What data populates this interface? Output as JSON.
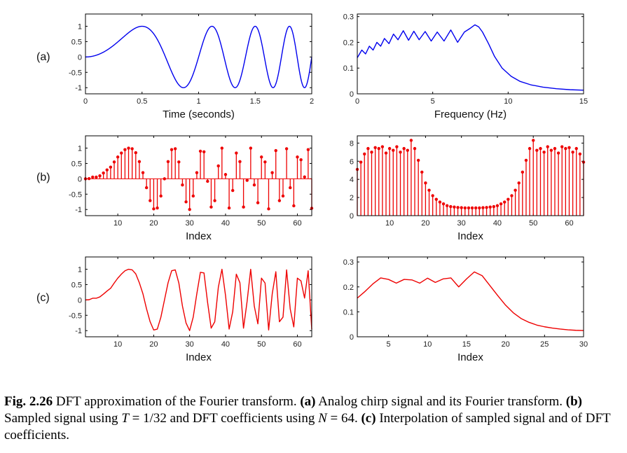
{
  "panel_labels": [
    "(a)",
    "(b)",
    "(c)"
  ],
  "caption": {
    "figure_number": "Fig. 2.26",
    "text_1": " DFT approximation of the Fourier transform. ",
    "a_label": "(a)",
    "text_2": " Analog chirp signal and its Fourier transform. ",
    "b_label": "(b)",
    "text_3": " Sampled signal using ",
    "sym_T": "T",
    "eq_T": " = 1/32",
    "text_4": " and DFT coefficients using ",
    "sym_N": "N",
    "eq_N": " = 64. ",
    "c_label": "(c)",
    "text_5": " Interpolation of sampled signal and of DFT coefficients."
  },
  "colors": {
    "analog": "#0000ee",
    "sampled": "#ee0000",
    "axes": "#000000"
  },
  "chart_data": [
    {
      "id": "a-left",
      "type": "line",
      "xlabel": "Time (seconds)",
      "ylabel": "",
      "xlim": [
        0,
        2
      ],
      "ylim": [
        -1.2,
        1.4
      ],
      "xticks": [
        0,
        0.5,
        1,
        1.5,
        2
      ],
      "xticklabels": [
        "0",
        "0.5",
        "1",
        "1.5",
        "2"
      ],
      "yticks": [
        1,
        0.5,
        0,
        -0.5,
        -1
      ],
      "yticklabels": [
        "1",
        "0.5",
        "0",
        "-0.5",
        "-1"
      ],
      "series": [
        {
          "function": "sin(2*pi*t^2)",
          "color": "#0000ee",
          "x_range": [
            0,
            2
          ]
        }
      ]
    },
    {
      "id": "a-right",
      "type": "line",
      "xlabel": "Frequency (Hz)",
      "ylabel": "",
      "xlim": [
        0,
        15
      ],
      "ylim": [
        0,
        0.31
      ],
      "xticks": [
        0,
        5,
        10,
        15
      ],
      "xticklabels": [
        "0",
        "5",
        "10",
        "15"
      ],
      "yticks": [
        0.3,
        0.2,
        0.1,
        0
      ],
      "yticklabels": [
        "0.3",
        "0.2",
        "0.1",
        "0"
      ],
      "series": [
        {
          "color": "#0000ee",
          "x": [
            0,
            0.3,
            0.55,
            0.8,
            1.05,
            1.3,
            1.55,
            1.8,
            2.1,
            2.4,
            2.7,
            3.05,
            3.4,
            3.75,
            4.1,
            4.5,
            4.9,
            5.3,
            5.75,
            6.2,
            6.65,
            7.1,
            7.5,
            7.8,
            8.05,
            8.3,
            8.7,
            9.1,
            9.6,
            10.2,
            10.8,
            11.5,
            12.3,
            13.2,
            14.1,
            15
          ],
          "y": [
            0.14,
            0.17,
            0.155,
            0.185,
            0.17,
            0.2,
            0.185,
            0.215,
            0.195,
            0.232,
            0.21,
            0.245,
            0.208,
            0.243,
            0.21,
            0.242,
            0.205,
            0.24,
            0.205,
            0.248,
            0.2,
            0.24,
            0.255,
            0.268,
            0.26,
            0.24,
            0.195,
            0.145,
            0.1,
            0.068,
            0.048,
            0.035,
            0.026,
            0.02,
            0.016,
            0.014
          ]
        }
      ]
    },
    {
      "id": "b-left",
      "type": "stem",
      "xlabel": "Index",
      "ylabel": "",
      "xlim": [
        1,
        64
      ],
      "ylim": [
        -1.2,
        1.4
      ],
      "xticks": [
        10,
        20,
        30,
        40,
        50,
        60
      ],
      "xticklabels": [
        "10",
        "20",
        "30",
        "40",
        "50",
        "60"
      ],
      "yticks": [
        1,
        0.5,
        0,
        -0.5,
        -1
      ],
      "yticklabels": [
        "1",
        "0.5",
        "0",
        "-0.5",
        "-1"
      ],
      "series": [
        {
          "color": "#ee0000",
          "x": [
            1,
            2,
            3,
            4,
            5,
            6,
            7,
            8,
            9,
            10,
            11,
            12,
            13,
            14,
            15,
            16,
            17,
            18,
            19,
            20,
            21,
            22,
            23,
            24,
            25,
            26,
            27,
            28,
            29,
            30,
            31,
            32,
            33,
            34,
            35,
            36,
            37,
            38,
            39,
            40,
            41,
            42,
            43,
            44,
            45,
            46,
            47,
            48,
            49,
            50,
            51,
            52,
            53,
            54,
            55,
            56,
            57,
            58,
            59,
            60,
            61,
            62,
            63,
            64
          ],
          "y": [
            0.0,
            0.006,
            0.055,
            0.055,
            0.098,
            0.19,
            0.29,
            0.38,
            0.55,
            0.71,
            0.84,
            0.95,
            1.0,
            0.98,
            0.85,
            0.56,
            0.2,
            -0.29,
            -0.71,
            -0.98,
            -0.95,
            -0.56,
            0.0,
            0.56,
            0.95,
            0.98,
            0.55,
            -0.2,
            -0.75,
            -1.0,
            -0.56,
            0.2,
            0.9,
            0.88,
            -0.08,
            -0.92,
            -0.71,
            0.42,
            1.0,
            0.14,
            -0.95,
            -0.38,
            0.84,
            0.56,
            -0.92,
            -0.05,
            1.0,
            -0.2,
            -0.78,
            0.71,
            0.55,
            -0.98,
            0.2,
            0.92,
            -0.71,
            -0.56,
            0.98,
            -0.29,
            -0.88,
            0.71,
            0.62,
            0.06,
            0.95,
            -0.96
          ]
        }
      ]
    },
    {
      "id": "b-right",
      "type": "stem",
      "xlabel": "Index",
      "ylabel": "",
      "xlim": [
        1,
        64
      ],
      "ylim": [
        0,
        8.8
      ],
      "xticks": [
        10,
        20,
        30,
        40,
        50,
        60
      ],
      "xticklabels": [
        "10",
        "20",
        "30",
        "40",
        "50",
        "60"
      ],
      "yticks": [
        8,
        6,
        4,
        2,
        0
      ],
      "yticklabels": [
        "8",
        "6",
        "4",
        "2",
        "0"
      ],
      "series": [
        {
          "color": "#ee0000",
          "x": [
            1,
            2,
            3,
            4,
            5,
            6,
            7,
            8,
            9,
            10,
            11,
            12,
            13,
            14,
            15,
            16,
            17,
            18,
            19,
            20,
            21,
            22,
            23,
            24,
            25,
            26,
            27,
            28,
            29,
            30,
            31,
            32,
            33,
            34,
            35,
            36,
            37,
            38,
            39,
            40,
            41,
            42,
            43,
            44,
            45,
            46,
            47,
            48,
            49,
            50,
            51,
            52,
            53,
            54,
            55,
            56,
            57,
            58,
            59,
            60,
            61,
            62,
            63,
            64
          ],
          "y": [
            5.1,
            5.9,
            6.8,
            7.4,
            7.0,
            7.5,
            7.4,
            7.6,
            6.9,
            7.4,
            7.2,
            7.6,
            7.0,
            7.4,
            7.2,
            8.3,
            7.4,
            6.1,
            4.8,
            3.6,
            2.8,
            2.2,
            1.8,
            1.5,
            1.3,
            1.1,
            1.0,
            0.95,
            0.9,
            0.88,
            0.85,
            0.85,
            0.85,
            0.85,
            0.85,
            0.88,
            0.9,
            0.95,
            1.0,
            1.1,
            1.3,
            1.5,
            1.8,
            2.2,
            2.8,
            3.6,
            4.8,
            6.1,
            7.4,
            8.3,
            7.2,
            7.4,
            7.0,
            7.6,
            7.2,
            7.4,
            6.9,
            7.6,
            7.4,
            7.5,
            7.0,
            7.4,
            6.8,
            5.9
          ]
        }
      ]
    },
    {
      "id": "c-left",
      "type": "line",
      "xlabel": "Index",
      "ylabel": "",
      "xlim": [
        1,
        64
      ],
      "ylim": [
        -1.2,
        1.4
      ],
      "xticks": [
        10,
        20,
        30,
        40,
        50,
        60
      ],
      "xticklabels": [
        "10",
        "20",
        "30",
        "40",
        "50",
        "60"
      ],
      "yticks": [
        1,
        0.5,
        0,
        -0.5,
        -1
      ],
      "yticklabels": [
        "1",
        "0.5",
        "0",
        "-0.5",
        "-1"
      ],
      "series": [
        {
          "color": "#ee0000",
          "same_values_as": "b-left"
        }
      ]
    },
    {
      "id": "c-right",
      "type": "line",
      "xlabel": "Index",
      "ylabel": "",
      "xlim": [
        1,
        30
      ],
      "ylim": [
        0,
        0.32
      ],
      "xticks": [
        5,
        10,
        15,
        20,
        25,
        30
      ],
      "xticklabels": [
        "5",
        "10",
        "15",
        "20",
        "25",
        "30"
      ],
      "yticks": [
        0.3,
        0.2,
        0.1,
        0
      ],
      "yticklabels": [
        "0.3",
        "0.2",
        "0.1",
        "0"
      ],
      "series": [
        {
          "color": "#ee0000",
          "x": [
            1,
            2,
            3,
            4,
            5,
            6,
            7,
            8,
            9,
            10,
            11,
            12,
            13,
            14,
            15,
            16,
            17,
            18,
            19,
            20,
            21,
            22,
            23,
            24,
            25,
            26,
            27,
            28,
            29,
            30
          ],
          "y": [
            0.155,
            0.182,
            0.212,
            0.236,
            0.23,
            0.215,
            0.23,
            0.228,
            0.215,
            0.235,
            0.218,
            0.232,
            0.236,
            0.2,
            0.232,
            0.26,
            0.245,
            0.205,
            0.165,
            0.127,
            0.096,
            0.073,
            0.058,
            0.047,
            0.04,
            0.035,
            0.031,
            0.028,
            0.026,
            0.025
          ]
        }
      ]
    }
  ]
}
